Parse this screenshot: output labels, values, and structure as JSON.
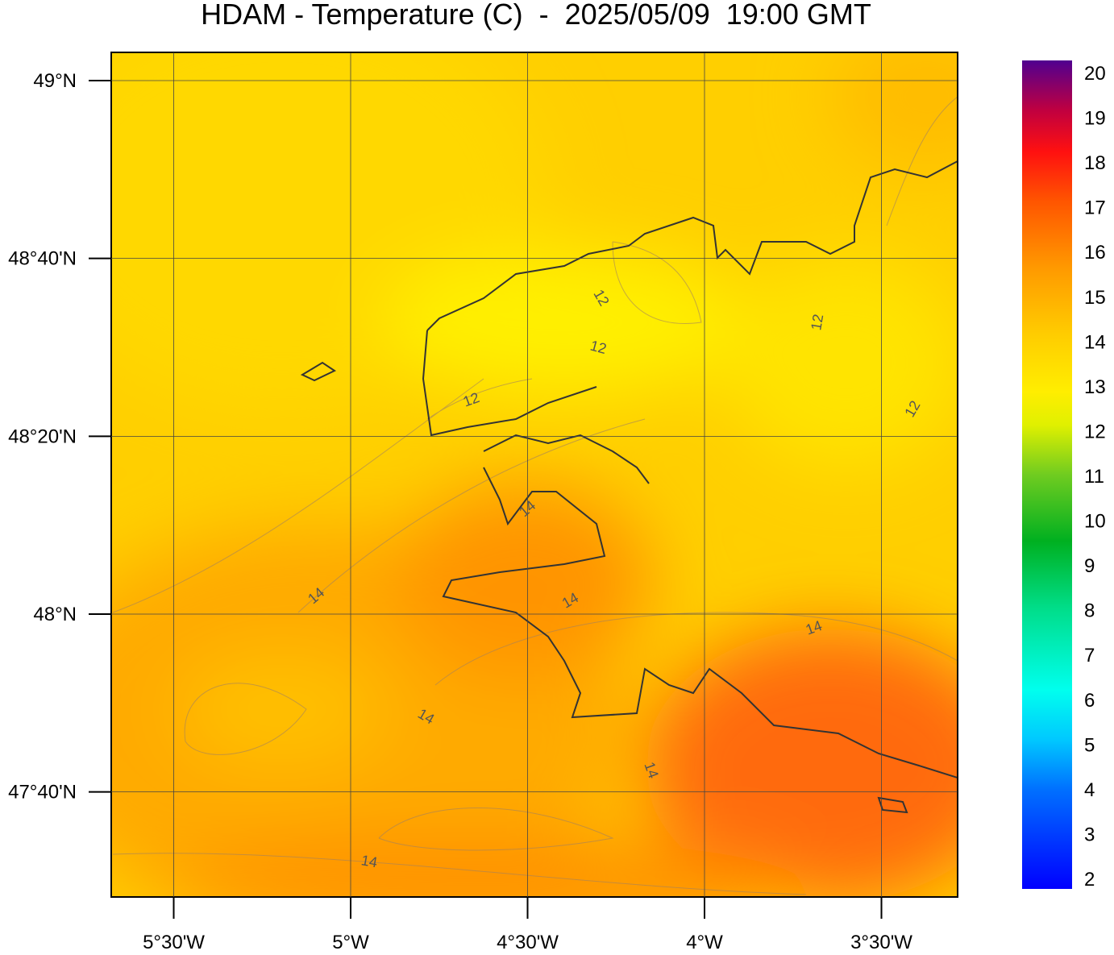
{
  "title": "HDAM - Temperature (C)  -  2025/05/09  19:00 GMT",
  "lat_ticks": [
    {
      "value": 49,
      "label": "49°N"
    },
    {
      "value": 48.6667,
      "label": "48°40'N"
    },
    {
      "value": 48.3333,
      "label": "48°20'N"
    },
    {
      "value": 48,
      "label": "48°N"
    },
    {
      "value": 47.6667,
      "label": "47°40'N"
    }
  ],
  "lon_ticks": [
    {
      "value": -5.5,
      "label": "5°30'W"
    },
    {
      "value": -5,
      "label": "5°W"
    },
    {
      "value": -4.5,
      "label": "4°30'W"
    },
    {
      "value": -4,
      "label": "4°W"
    },
    {
      "value": -3.5,
      "label": "3°30'W"
    }
  ],
  "colorbar_ticks": [
    2,
    3,
    4,
    5,
    6,
    7,
    8,
    9,
    10,
    11,
    12,
    13,
    14,
    15,
    16,
    17,
    18,
    19,
    20
  ],
  "contour_labels": [
    12,
    12,
    12,
    12,
    12,
    14,
    14,
    14,
    14,
    14,
    14,
    14
  ]
}
